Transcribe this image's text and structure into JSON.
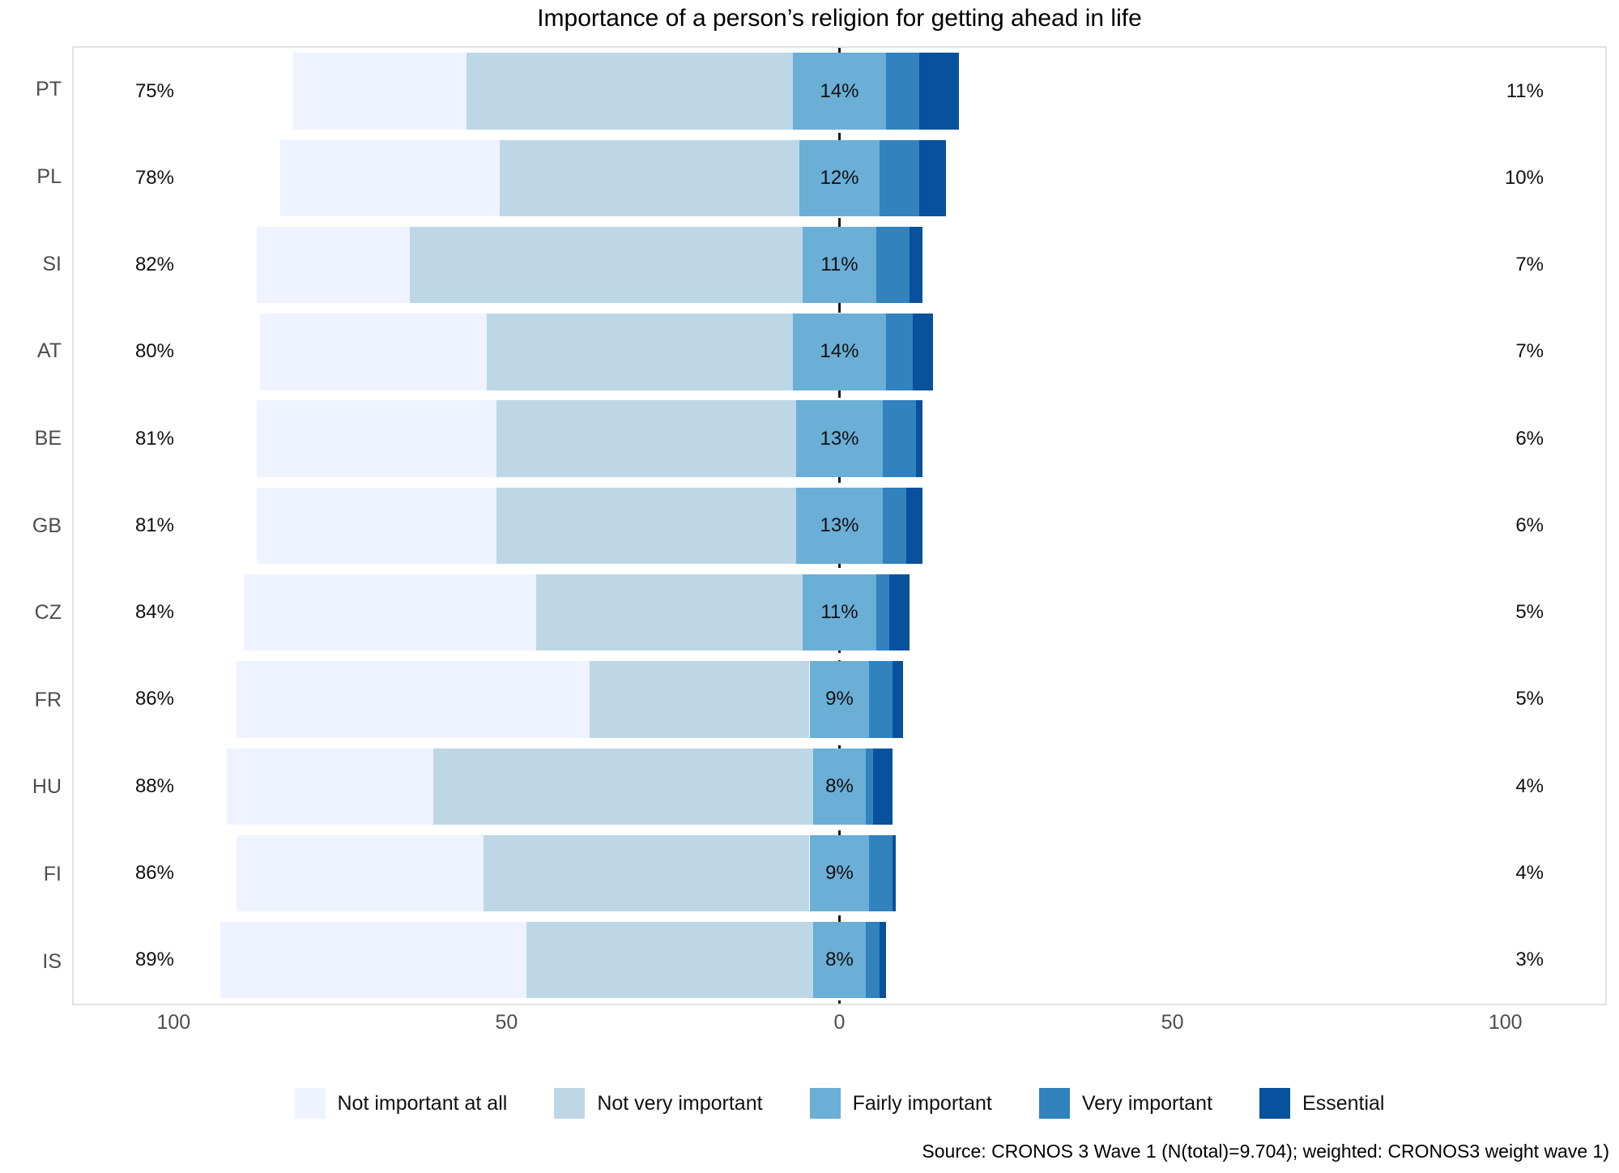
{
  "title": "Importance of a person’s religion for getting ahead in life",
  "source_note": "Source: CRONOS 3 Wave 1 (N(total)=9.704); weighted: CRONOS3 weight wave 1)",
  "legend": {
    "items": [
      {
        "label": "Not important at all",
        "color": "#EFF3FF"
      },
      {
        "label": "Not very important",
        "color": "#BDD7E7"
      },
      {
        "label": "Fairly important",
        "color": "#6BAED6"
      },
      {
        "label": "Very important",
        "color": "#3182BD"
      },
      {
        "label": "Essential",
        "color": "#08519C"
      }
    ]
  },
  "axis": {
    "tick_values": [
      -100,
      -50,
      0,
      50,
      100
    ],
    "tick_labels": [
      "100",
      "50",
      "0",
      "50",
      "100"
    ]
  },
  "chart_data": {
    "type": "diverging_stacked_bar",
    "orientation": "horizontal",
    "xlim": [
      -115,
      115
    ],
    "center_category": "Fairly important",
    "center_split": 0.5,
    "categories": [
      "Not important at all",
      "Not very important",
      "Fairly important",
      "Very important",
      "Essential"
    ],
    "colors": [
      "#EFF3FF",
      "#BDD7E7",
      "#6BAED6",
      "#3182BD",
      "#08519C"
    ],
    "rows": [
      {
        "country": "PT",
        "values": [
          26,
          49,
          14,
          5,
          6
        ],
        "left_label": "75%",
        "center_label": "14%",
        "right_label": "11%"
      },
      {
        "country": "PL",
        "values": [
          33,
          45,
          12,
          6,
          4
        ],
        "left_label": "78%",
        "center_label": "12%",
        "right_label": "10%"
      },
      {
        "country": "SI",
        "values": [
          23,
          59,
          11,
          5,
          2
        ],
        "left_label": "82%",
        "center_label": "11%",
        "right_label": "7%"
      },
      {
        "country": "AT",
        "values": [
          34,
          46,
          14,
          4,
          3
        ],
        "left_label": "80%",
        "center_label": "14%",
        "right_label": "7%"
      },
      {
        "country": "BE",
        "values": [
          36,
          45,
          13,
          5,
          1
        ],
        "left_label": "81%",
        "center_label": "13%",
        "right_label": "6%"
      },
      {
        "country": "GB",
        "values": [
          36,
          45,
          13,
          3.5,
          2.5
        ],
        "left_label": "81%",
        "center_label": "13%",
        "right_label": "6%"
      },
      {
        "country": "CZ",
        "values": [
          44,
          40,
          11,
          2,
          3
        ],
        "left_label": "84%",
        "center_label": "11%",
        "right_label": "5%"
      },
      {
        "country": "FR",
        "values": [
          53,
          33,
          9,
          3.5,
          1.5
        ],
        "left_label": "86%",
        "center_label": "9%",
        "right_label": "5%"
      },
      {
        "country": "HU",
        "values": [
          31,
          57,
          8,
          1,
          3
        ],
        "left_label": "88%",
        "center_label": "8%",
        "right_label": "4%"
      },
      {
        "country": "FI",
        "values": [
          37,
          49,
          9,
          3.5,
          0.5
        ],
        "left_label": "86%",
        "center_label": "9%",
        "right_label": "4%"
      },
      {
        "country": "IS",
        "values": [
          46,
          43,
          8,
          2,
          1
        ],
        "left_label": "89%",
        "center_label": "8%",
        "right_label": "3%"
      }
    ]
  }
}
